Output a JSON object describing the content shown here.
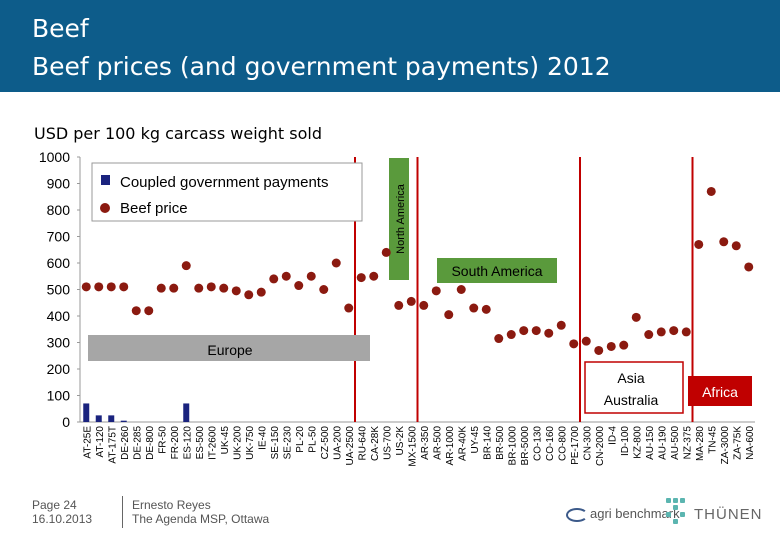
{
  "header": {
    "title": "Beef",
    "subtitle": "Beef prices (and government payments) 2012"
  },
  "chart_data": {
    "type": "bar",
    "ylabel": "USD per 100 kg carcass weight sold",
    "ylim": [
      0,
      1000
    ],
    "yticks": [
      0,
      100,
      200,
      300,
      400,
      500,
      600,
      700,
      800,
      900,
      1000
    ],
    "legend": [
      {
        "name": "Coupled government payments",
        "marker": "bar",
        "color": "#1a237e"
      },
      {
        "name": "Beef price",
        "marker": "dot",
        "color": "#8b1a10"
      }
    ],
    "legend_position": "top-left",
    "region_labels": [
      {
        "name": "Europe",
        "box_color": "#a6a6a6"
      },
      {
        "name": "North America",
        "box_color": "#5a9a3c"
      },
      {
        "name": "South America",
        "box_color": "#5a9a3c"
      },
      {
        "name": "Asia\nAustralia",
        "box_color": "#ffffff"
      },
      {
        "name": "Africa",
        "box_color": "#c00000"
      }
    ],
    "categories": [
      "AT-25E",
      "AT-120",
      "AT-175T",
      "DE-260",
      "DE-285",
      "DE-800",
      "FR-50",
      "FR-200",
      "ES-120",
      "ES-500",
      "IT-2600",
      "UK-45",
      "UK-200",
      "UK-750",
      "IE-40",
      "SE-150",
      "SE-230",
      "PL-20",
      "PL-50",
      "CZ-500",
      "UA-200",
      "UA-2500",
      "RU-640",
      "CA-28K",
      "US-700",
      "US-2K",
      "MX-1500",
      "AR-350",
      "AR-500",
      "AR-1000",
      "AR-40K",
      "UY-45",
      "BR-140",
      "BR-500",
      "BR-1000",
      "BR-5000",
      "CO-130",
      "CO-160",
      "CO-800",
      "PE-1700",
      "CN-300",
      "CN-2000",
      "ID-4",
      "ID-100",
      "KZ-800",
      "AU-150",
      "AU-190",
      "AU-500",
      "NZ-375",
      "MA-280",
      "TN-45",
      "ZA-3000",
      "ZA-75K",
      "NA-600"
    ],
    "series": [
      {
        "name": "Beef price",
        "values": [
          510,
          510,
          510,
          510,
          420,
          420,
          505,
          505,
          590,
          505,
          510,
          505,
          495,
          480,
          490,
          540,
          550,
          515,
          550,
          500,
          600,
          430,
          545,
          550,
          640,
          440,
          455,
          440,
          495,
          405,
          500,
          430,
          425,
          315,
          330,
          345,
          345,
          335,
          365,
          295,
          305,
          270,
          285,
          290,
          395,
          330,
          340,
          345,
          340,
          670,
          870,
          680,
          665,
          585
        ]
      },
      {
        "name": "Coupled government payments",
        "values": [
          70,
          25,
          25,
          5,
          0,
          0,
          0,
          0,
          70,
          0,
          0,
          0,
          0,
          0,
          0,
          0,
          0,
          0,
          0,
          0,
          0,
          0,
          0,
          0,
          0,
          0,
          0,
          0,
          0,
          0,
          0,
          0,
          0,
          0,
          0,
          0,
          0,
          0,
          0,
          0,
          0,
          0,
          0,
          0,
          0,
          0,
          0,
          0,
          0,
          0,
          0,
          0,
          0,
          0
        ]
      }
    ]
  },
  "footer": {
    "page": "Page 24",
    "date": "16.10.2013",
    "author": "Ernesto Reyes",
    "event": "The Agenda MSP, Ottawa"
  },
  "logos": {
    "agri": "agri benchmark",
    "thuenen": "THÜNEN"
  },
  "colors": {
    "header_bg": "#0d5c8a",
    "price_dot": "#8b1a10",
    "payment_bar": "#1a237e",
    "divider": "#c00000"
  }
}
